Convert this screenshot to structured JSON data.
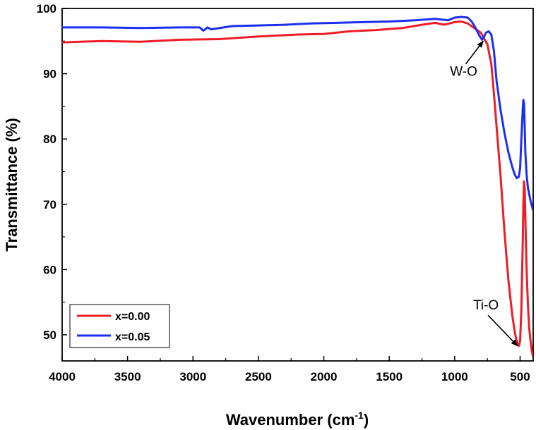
{
  "chart_data": {
    "type": "line",
    "title": "",
    "xlabel_main": "Wavenumber (cm",
    "xlabel_sup": "-1",
    "xlabel_close": ")",
    "ylabel": "Transmittance (%)",
    "xlim": [
      4000,
      400
    ],
    "ylim": [
      46,
      100
    ],
    "x_ticks": [
      4000,
      3500,
      3000,
      2500,
      2000,
      1500,
      1000,
      500
    ],
    "y_ticks": [
      50,
      60,
      70,
      80,
      90,
      100
    ],
    "grid": false,
    "legend_position": "bottom-left",
    "series": [
      {
        "name": "x=0.00",
        "color": "#ee1c25",
        "x": [
          4000,
          3700,
          3400,
          3100,
          2800,
          2500,
          2200,
          2000,
          1800,
          1600,
          1400,
          1250,
          1150,
          1080,
          1000,
          950,
          900,
          850,
          800,
          750,
          720,
          700,
          680,
          650,
          620,
          590,
          560,
          540,
          520,
          510,
          500,
          490,
          480,
          475,
          470,
          465,
          460,
          450,
          440,
          430,
          420,
          410,
          400
        ],
        "values": [
          94.8,
          95.0,
          94.9,
          95.2,
          95.3,
          95.7,
          96.0,
          96.1,
          96.5,
          96.7,
          97.0,
          97.5,
          97.8,
          97.5,
          97.9,
          98.0,
          97.7,
          97.0,
          96.3,
          94.5,
          91.5,
          87.0,
          82.0,
          74.5,
          66.0,
          58.5,
          53.0,
          50.3,
          48.6,
          48.3,
          49.0,
          54.0,
          64.0,
          70.0,
          73.5,
          72.5,
          68.0,
          60.0,
          54.5,
          51.0,
          49.0,
          47.5,
          46.5
        ]
      },
      {
        "name": "x=0.05",
        "color": "#1c2ef0",
        "x": [
          4000,
          3700,
          3400,
          3100,
          2950,
          2920,
          2890,
          2860,
          2700,
          2500,
          2300,
          2100,
          1900,
          1700,
          1500,
          1300,
          1150,
          1050,
          1000,
          950,
          900,
          870,
          840,
          810,
          790,
          775,
          760,
          740,
          720,
          700,
          680,
          650,
          620,
          590,
          560,
          540,
          525,
          510,
          500,
          490,
          480,
          475,
          470,
          465,
          460,
          450,
          440,
          420,
          400
        ],
        "values": [
          97.1,
          97.1,
          97.0,
          97.1,
          97.1,
          96.6,
          97.1,
          96.8,
          97.3,
          97.4,
          97.5,
          97.7,
          97.8,
          97.9,
          98.0,
          98.2,
          98.4,
          98.2,
          98.6,
          98.7,
          98.6,
          98.0,
          97.0,
          95.8,
          95.2,
          95.7,
          96.3,
          96.5,
          96.0,
          93.5,
          89.0,
          84.5,
          81.0,
          78.0,
          75.7,
          74.5,
          74.0,
          74.2,
          75.5,
          80.0,
          84.5,
          86.0,
          85.5,
          82.0,
          78.0,
          74.5,
          72.5,
          70.5,
          69.0
        ]
      }
    ],
    "annotations": [
      {
        "text": "W-O",
        "from": [
          915,
          91.5
        ],
        "to": [
          782,
          95.0
        ]
      },
      {
        "text": "Ti-O",
        "from": [
          745,
          53.0
        ],
        "to": [
          520,
          48.3
        ]
      }
    ]
  }
}
